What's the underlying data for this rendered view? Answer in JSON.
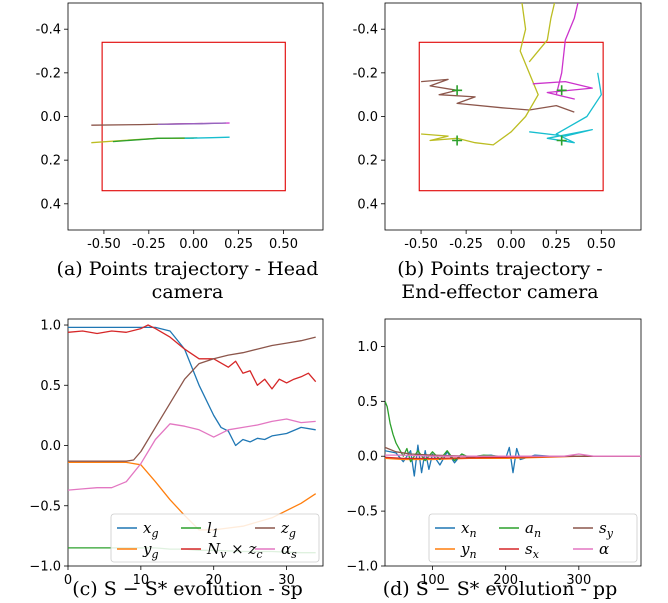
{
  "captions": {
    "a": {
      "line1": "(a) Points trajectory - Head",
      "line2": "camera"
    },
    "b": {
      "line1": "(b) Points trajectory -",
      "line2": "End-effector camera"
    },
    "c": "(c) S − S* evolution - sp",
    "d": "(d) S − S* evolution - pp"
  },
  "colors": {
    "blue": "#1f77b4",
    "orange": "#ff7f0e",
    "green": "#2ca02c",
    "red": "#d62728",
    "purple": "#9467bd",
    "brown": "#8c564b",
    "pink": "#e377c2",
    "olive": "#bcbd22",
    "cyan": "#17becf",
    "magenta": "#cc33cc",
    "rect": "#e00000",
    "target": "#2ca02c"
  },
  "chart_data": [
    {
      "id": "a",
      "type": "line",
      "x_ticks": [
        "-0.50",
        "-0.25",
        "0.00",
        "0.25",
        "0.50"
      ],
      "x_tick_values": [
        -0.5,
        -0.25,
        0.0,
        0.25,
        0.5
      ],
      "y_ticks": [
        "-0.4",
        "-0.2",
        "0.0",
        "0.2",
        "0.4"
      ],
      "y_tick_values": [
        -0.4,
        -0.2,
        0.0,
        0.2,
        0.4
      ],
      "xlim": [
        -0.7,
        0.72
      ],
      "ylim": [
        0.52,
        -0.52
      ],
      "rect": {
        "x0": -0.51,
        "x1": 0.51,
        "y0": -0.34,
        "y1": 0.34
      },
      "series": [
        {
          "color": "brown",
          "points": [
            [
              -0.57,
              0.04
            ],
            [
              -0.3,
              0.037
            ],
            [
              -0.1,
              0.034
            ],
            [
              0.05,
              0.032
            ]
          ]
        },
        {
          "color": "magenta",
          "points": [
            [
              -0.15,
              0.035
            ],
            [
              0.0,
              0.033
            ],
            [
              0.2,
              0.03
            ]
          ]
        },
        {
          "color": "olive",
          "points": [
            [
              -0.57,
              0.12
            ],
            [
              -0.4,
              0.11
            ],
            [
              -0.2,
              0.1
            ],
            [
              0.0,
              0.1
            ]
          ]
        },
        {
          "color": "green",
          "points": [
            [
              -0.45,
              0.115
            ],
            [
              -0.2,
              0.1
            ],
            [
              0.02,
              0.098
            ]
          ]
        },
        {
          "color": "cyan",
          "points": [
            [
              -0.05,
              0.1
            ],
            [
              0.1,
              0.097
            ],
            [
              0.2,
              0.095
            ]
          ]
        },
        {
          "color": "purple",
          "points": [
            [
              -0.2,
              0.036
            ],
            [
              0.05,
              0.033
            ],
            [
              0.18,
              0.03
            ]
          ]
        }
      ]
    },
    {
      "id": "b",
      "type": "line",
      "x_ticks": [
        "-0.50",
        "-0.25",
        "0.00",
        "0.25",
        "0.50"
      ],
      "x_tick_values": [
        -0.5,
        -0.25,
        0.0,
        0.25,
        0.5
      ],
      "y_ticks": [
        "-0.4",
        "-0.2",
        "0.0",
        "0.2",
        "0.4"
      ],
      "y_tick_values": [
        -0.4,
        -0.2,
        0.0,
        0.2,
        0.4
      ],
      "xlim": [
        -0.7,
        0.72
      ],
      "ylim": [
        0.52,
        -0.52
      ],
      "rect": {
        "x0": -0.51,
        "x1": 0.51,
        "y0": -0.34,
        "y1": 0.34
      },
      "targets": [
        [
          -0.3,
          -0.12
        ],
        [
          0.28,
          -0.12
        ],
        [
          -0.3,
          0.11
        ],
        [
          0.28,
          0.11
        ]
      ],
      "series": [
        {
          "color": "brown",
          "points": [
            [
              -0.5,
              -0.16
            ],
            [
              -0.35,
              -0.17
            ],
            [
              -0.45,
              -0.14
            ],
            [
              -0.3,
              -0.12
            ],
            [
              -0.4,
              -0.1
            ],
            [
              -0.2,
              -0.09
            ],
            [
              -0.3,
              -0.06
            ],
            [
              -0.05,
              -0.04
            ],
            [
              0.1,
              -0.03
            ],
            [
              0.25,
              -0.05
            ],
            [
              0.35,
              -0.02
            ]
          ]
        },
        {
          "color": "olive",
          "points": [
            [
              -0.5,
              0.08
            ],
            [
              -0.35,
              0.09
            ],
            [
              -0.45,
              0.11
            ],
            [
              -0.3,
              0.1
            ],
            [
              -0.2,
              0.12
            ],
            [
              -0.1,
              0.13
            ],
            [
              0.0,
              0.07
            ],
            [
              0.08,
              0.0
            ],
            [
              0.15,
              -0.1
            ],
            [
              0.05,
              -0.3
            ],
            [
              0.08,
              -0.4
            ],
            [
              0.06,
              -0.52
            ]
          ]
        },
        {
          "color": "magenta",
          "points": [
            [
              0.12,
              -0.15
            ],
            [
              0.3,
              -0.16
            ],
            [
              0.45,
              -0.13
            ],
            [
              0.2,
              -0.11
            ],
            [
              0.35,
              -0.08
            ],
            [
              0.25,
              -0.1
            ],
            [
              0.28,
              -0.2
            ],
            [
              0.3,
              -0.35
            ],
            [
              0.35,
              -0.45
            ],
            [
              0.37,
              -0.52
            ]
          ]
        },
        {
          "color": "cyan",
          "points": [
            [
              0.1,
              0.07
            ],
            [
              0.3,
              0.09
            ],
            [
              0.45,
              0.06
            ],
            [
              0.2,
              0.1
            ],
            [
              0.35,
              0.12
            ],
            [
              0.25,
              0.08
            ],
            [
              0.42,
              0.0
            ],
            [
              0.5,
              -0.1
            ],
            [
              0.48,
              -0.2
            ]
          ]
        },
        {
          "color": "olive",
          "points": [
            [
              0.1,
              -0.25
            ],
            [
              0.2,
              -0.35
            ],
            [
              0.22,
              -0.45
            ],
            [
              0.24,
              -0.52
            ]
          ]
        }
      ]
    },
    {
      "id": "c",
      "type": "line",
      "x_ticks": [
        "0",
        "10",
        "20",
        "30"
      ],
      "x_tick_values": [
        0,
        10,
        20,
        30
      ],
      "y_ticks": [
        "1.0",
        "0.5",
        "0.0",
        "−0.5",
        "−1.0"
      ],
      "y_tick_values": [
        1.0,
        0.5,
        0.0,
        -0.5,
        -1.0
      ],
      "xlim": [
        0,
        35
      ],
      "ylim": [
        -1.0,
        1.05
      ],
      "legend": {
        "placement": "lower-right",
        "cols": 3
      },
      "series": [
        {
          "name": "x_g",
          "label_base": "x",
          "label_sub": "g",
          "color": "blue",
          "x": [
            0,
            2,
            4,
            6,
            8,
            10,
            12,
            14,
            16,
            18,
            20,
            21,
            22,
            23,
            24,
            25,
            26,
            27,
            28,
            30,
            32,
            34
          ],
          "y": [
            0.98,
            0.98,
            0.98,
            0.98,
            0.98,
            0.98,
            0.98,
            0.95,
            0.8,
            0.5,
            0.25,
            0.15,
            0.12,
            0.0,
            0.05,
            0.03,
            0.06,
            0.05,
            0.08,
            0.1,
            0.15,
            0.13
          ]
        },
        {
          "name": "y_g",
          "label_base": "y",
          "label_sub": "g",
          "color": "orange",
          "x": [
            0,
            4,
            8,
            10,
            12,
            14,
            16,
            18,
            20,
            24,
            28,
            32,
            34
          ],
          "y": [
            -0.14,
            -0.14,
            -0.14,
            -0.16,
            -0.3,
            -0.45,
            -0.58,
            -0.7,
            -0.7,
            -0.67,
            -0.6,
            -0.48,
            -0.4
          ]
        },
        {
          "name": "l_1",
          "label_base": "l",
          "label_sub": "1",
          "color": "green",
          "x": [
            0,
            5,
            10,
            12,
            14,
            16,
            18,
            20,
            24,
            28,
            32,
            34
          ],
          "y": [
            -0.85,
            -0.85,
            -0.85,
            -0.85,
            -0.86,
            -0.86,
            -0.87,
            -0.87,
            -0.88,
            -0.88,
            -0.89,
            -0.89
          ]
        },
        {
          "name": "N_v × z_c",
          "label_base": "N",
          "label_sub": "v",
          "label_tail": " × z",
          "label_sub2": "c",
          "color": "red",
          "x": [
            0,
            2,
            4,
            6,
            8,
            10,
            11,
            12,
            14,
            16,
            18,
            20,
            22,
            23,
            24,
            25,
            26,
            27,
            28,
            29,
            30,
            31,
            32,
            33,
            34
          ],
          "y": [
            0.94,
            0.95,
            0.93,
            0.95,
            0.94,
            0.97,
            1.0,
            0.97,
            0.9,
            0.8,
            0.72,
            0.72,
            0.65,
            0.7,
            0.6,
            0.62,
            0.5,
            0.55,
            0.47,
            0.55,
            0.52,
            0.55,
            0.57,
            0.6,
            0.53
          ]
        },
        {
          "name": "z_g",
          "label_base": "z",
          "label_sub": "g",
          "color": "brown",
          "x": [
            0,
            4,
            8,
            9,
            10,
            12,
            14,
            16,
            18,
            20,
            22,
            24,
            26,
            28,
            30,
            32,
            34
          ],
          "y": [
            -0.13,
            -0.13,
            -0.13,
            -0.12,
            -0.05,
            0.15,
            0.35,
            0.55,
            0.68,
            0.72,
            0.75,
            0.77,
            0.8,
            0.83,
            0.85,
            0.87,
            0.9
          ]
        },
        {
          "name": "α_s",
          "label_base": "α",
          "label_sub": "s",
          "color": "pink",
          "x": [
            0,
            2,
            4,
            6,
            8,
            10,
            12,
            14,
            16,
            18,
            20,
            22,
            24,
            26,
            28,
            30,
            32,
            34
          ],
          "y": [
            -0.37,
            -0.36,
            -0.35,
            -0.35,
            -0.3,
            -0.15,
            0.05,
            0.18,
            0.16,
            0.13,
            0.07,
            0.13,
            0.15,
            0.17,
            0.2,
            0.22,
            0.19,
            0.2
          ]
        }
      ]
    },
    {
      "id": "d",
      "type": "line",
      "x_ticks": [
        "100",
        "200",
        "300"
      ],
      "x_tick_values": [
        100,
        200,
        300
      ],
      "y_ticks": [
        "1.0",
        "0.5",
        "0.0",
        "−0.5",
        "−1.0"
      ],
      "y_tick_values": [
        1.0,
        0.5,
        0.0,
        -0.5,
        -1.0
      ],
      "xlim": [
        35,
        385
      ],
      "ylim": [
        -1.0,
        1.25
      ],
      "legend": {
        "placement": "lower-right",
        "cols": 3
      },
      "series": [
        {
          "name": "x_n",
          "label_base": "x",
          "label_sub": "n",
          "color": "blue",
          "x": [
            35,
            50,
            60,
            70,
            75,
            80,
            85,
            90,
            95,
            100,
            110,
            120,
            130,
            140,
            150,
            160,
            180,
            200,
            205,
            210,
            215,
            220,
            240,
            260,
            300,
            385
          ],
          "y": [
            0.05,
            0.03,
            -0.05,
            0.05,
            -0.18,
            0.1,
            -0.15,
            0.05,
            -0.12,
            0.02,
            -0.08,
            0.04,
            -0.06,
            0.02,
            -0.02,
            0.0,
            0.01,
            -0.02,
            0.08,
            -0.15,
            0.07,
            -0.03,
            0.01,
            0.0,
            0.0,
            0.0
          ]
        },
        {
          "name": "y_n",
          "label_base": "y",
          "label_sub": "n",
          "color": "orange",
          "x": [
            35,
            60,
            100,
            150,
            200,
            250,
            300,
            385
          ],
          "y": [
            -0.02,
            -0.03,
            -0.03,
            -0.02,
            -0.02,
            -0.01,
            0.0,
            0.0
          ]
        },
        {
          "name": "a_n",
          "label_base": "a",
          "label_sub": "n",
          "color": "green",
          "x": [
            35,
            38,
            42,
            46,
            50,
            55,
            60,
            65,
            70,
            80,
            90,
            100,
            110,
            120,
            130,
            140,
            150,
            170,
            190,
            250,
            385
          ],
          "y": [
            0.5,
            0.45,
            0.3,
            0.2,
            0.12,
            0.06,
            0.0,
            0.07,
            -0.05,
            0.05,
            -0.04,
            0.04,
            -0.03,
            0.05,
            -0.04,
            0.02,
            -0.01,
            0.01,
            0.0,
            0.0,
            0.0
          ]
        },
        {
          "name": "s_x",
          "label_base": "s",
          "label_sub": "x",
          "color": "red",
          "x": [
            35,
            60,
            100,
            200,
            300,
            385
          ],
          "y": [
            -0.01,
            -0.02,
            -0.02,
            -0.01,
            0.0,
            0.0
          ]
        },
        {
          "name": "s_y",
          "label_base": "s",
          "label_sub": "y",
          "color": "brown",
          "x": [
            35,
            50,
            70,
            100,
            150,
            200,
            300,
            385
          ],
          "y": [
            0.08,
            0.04,
            0.02,
            0.01,
            0.0,
            0.0,
            0.0,
            0.0
          ]
        },
        {
          "name": "α",
          "label_base": "α",
          "label_sub": "",
          "color": "pink",
          "x": [
            35,
            60,
            100,
            150,
            200,
            280,
            300,
            320,
            385
          ],
          "y": [
            0.01,
            0.01,
            0.0,
            0.0,
            0.0,
            0.0,
            0.02,
            0.0,
            0.0
          ]
        }
      ]
    }
  ]
}
